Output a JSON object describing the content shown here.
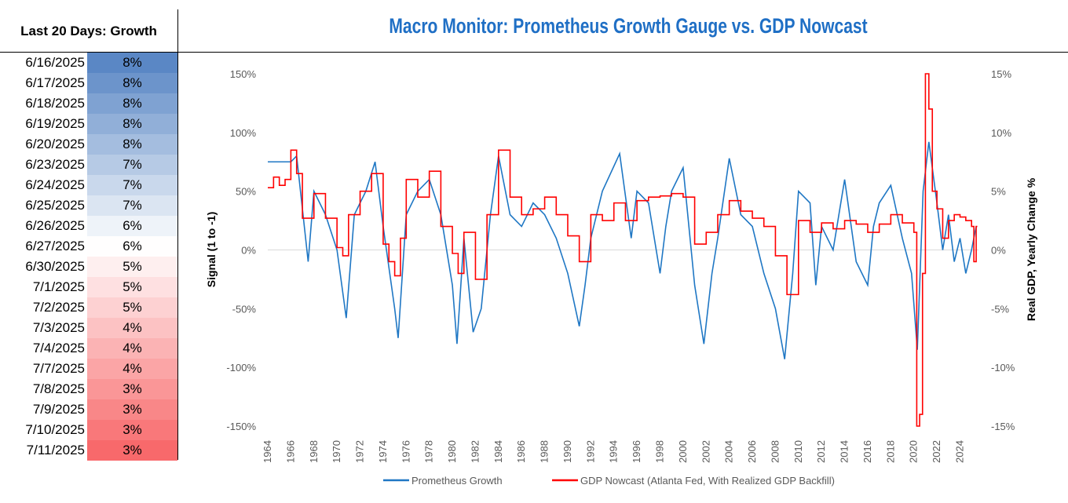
{
  "table": {
    "header": "Last 20 Days: Growth",
    "rows": [
      [
        "6/16/2025",
        "8%"
      ],
      [
        "6/17/2025",
        "8%"
      ],
      [
        "6/18/2025",
        "8%"
      ],
      [
        "6/19/2025",
        "8%"
      ],
      [
        "6/20/2025",
        "8%"
      ],
      [
        "6/23/2025",
        "7%"
      ],
      [
        "6/24/2025",
        "7%"
      ],
      [
        "6/25/2025",
        "7%"
      ],
      [
        "6/26/2025",
        "6%"
      ],
      [
        "6/27/2025",
        "6%"
      ],
      [
        "6/30/2025",
        "5%"
      ],
      [
        "7/1/2025",
        "5%"
      ],
      [
        "7/2/2025",
        "5%"
      ],
      [
        "7/3/2025",
        "4%"
      ],
      [
        "7/4/2025",
        "4%"
      ],
      [
        "7/7/2025",
        "4%"
      ],
      [
        "7/8/2025",
        "3%"
      ],
      [
        "7/9/2025",
        "3%"
      ],
      [
        "7/10/2025",
        "3%"
      ],
      [
        "7/11/2025",
        "3%"
      ]
    ],
    "color_high": "#5a87c5",
    "color_mid": "#ffffff",
    "color_low": "#f8696b"
  },
  "chart_data": {
    "type": "line",
    "title": "Macro Monitor: Prometheus Growth Gauge vs. GDP Nowcast",
    "ylabel": "Signal (1 to -1)",
    "y2label": "Real GDP, Yearly Change %",
    "ylim": [
      -1.5,
      1.5
    ],
    "y2lim": [
      -15,
      15
    ],
    "yticks": [
      "150%",
      "100%",
      "50%",
      "0%",
      "-50%",
      "-100%",
      "-150%"
    ],
    "y2ticks": [
      "15%",
      "10%",
      "5%",
      "0%",
      "-5%",
      "-10%",
      "-15%"
    ],
    "xlim": [
      1964,
      2025.6
    ],
    "xticks": [
      "1964",
      "1966",
      "1968",
      "1970",
      "1972",
      "1974",
      "1976",
      "1978",
      "1980",
      "1982",
      "1984",
      "1986",
      "1988",
      "1990",
      "1992",
      "1994",
      "1996",
      "1998",
      "2000",
      "2002",
      "2004",
      "2006",
      "2008",
      "2010",
      "2012",
      "2014",
      "2016",
      "2018",
      "2020",
      "2022",
      "2024"
    ],
    "legend_position": "bottom",
    "series": [
      {
        "name": "Prometheus Growth",
        "color": "#1f77c4",
        "axis": "left",
        "x": [
          1964,
          1966,
          1966.5,
          1967.5,
          1968,
          1969,
          1970,
          1970.8,
          1971.5,
          1972.5,
          1973.3,
          1974,
          1975,
          1975.3,
          1976,
          1977,
          1978,
          1979,
          1980,
          1980.4,
          1981,
          1981.8,
          1982.5,
          1983.3,
          1984,
          1985,
          1986,
          1987,
          1988,
          1989,
          1990,
          1991,
          1991.5,
          1992,
          1993,
          1994.5,
          1995.5,
          1996,
          1997,
          1998,
          1998.5,
          1999,
          2000,
          2001,
          2001.8,
          2002.5,
          2003,
          2004,
          2005,
          2006,
          2007,
          2008,
          2008.8,
          2009.5,
          2010,
          2011,
          2011.5,
          2012,
          2013,
          2014,
          2015,
          2016,
          2016.5,
          2017,
          2018,
          2019,
          2019.8,
          2020.3,
          2020.8,
          2021.3,
          2022,
          2022.5,
          2023,
          2023.5,
          2024,
          2024.5,
          2025,
          2025.4
        ],
        "y": [
          0.75,
          0.75,
          0.8,
          -0.1,
          0.5,
          0.3,
          0,
          -0.58,
          0.3,
          0.5,
          0.75,
          0.2,
          -0.5,
          -0.75,
          0.3,
          0.5,
          0.6,
          0.3,
          -0.3,
          -0.8,
          0.1,
          -0.7,
          -0.5,
          0.3,
          0.8,
          0.3,
          0.2,
          0.4,
          0.3,
          0.1,
          -0.2,
          -0.65,
          -0.3,
          0.1,
          0.5,
          0.82,
          0.1,
          0.5,
          0.4,
          -0.2,
          0.2,
          0.5,
          0.7,
          -0.3,
          -0.8,
          -0.2,
          0.1,
          0.78,
          0.3,
          0.2,
          -0.2,
          -0.5,
          -0.93,
          -0.2,
          0.5,
          0.4,
          -0.3,
          0.2,
          0,
          0.6,
          -0.1,
          -0.3,
          0.2,
          0.4,
          0.55,
          0.1,
          -0.2,
          -0.85,
          0.5,
          0.92,
          0.4,
          0,
          0.3,
          -0.1,
          0.1,
          -0.2,
          0,
          0.2
        ]
      },
      {
        "name": "GDP Nowcast (Atlanta Fed, With Realized GDP Backfill)",
        "color": "#ff0000",
        "axis": "right",
        "step": true,
        "x": [
          1964,
          1964.5,
          1965,
          1965.5,
          1966,
          1966.5,
          1967,
          1968,
          1969,
          1970,
          1970.5,
          1971,
          1972,
          1973,
          1974,
          1974.5,
          1975,
          1975.5,
          1976,
          1977,
          1978,
          1979,
          1980,
          1980.5,
          1981,
          1982,
          1983,
          1984,
          1985,
          1986,
          1987,
          1988,
          1989,
          1990,
          1991,
          1992,
          1993,
          1994,
          1995,
          1996,
          1997,
          1998,
          1999,
          2000,
          2001,
          2002,
          2003,
          2004,
          2005,
          2006,
          2007,
          2008,
          2009,
          2010,
          2011,
          2012,
          2013,
          2014,
          2015,
          2016,
          2017,
          2018,
          2019,
          2020,
          2020.25,
          2020.5,
          2020.75,
          2021,
          2021.3,
          2021.6,
          2022,
          2022.5,
          2023,
          2023.5,
          2024,
          2024.5,
          2025,
          2025.2,
          2025.4
        ],
        "y": [
          5.3,
          6.2,
          5.5,
          6,
          8.5,
          6.5,
          2.7,
          4.8,
          2.7,
          0.2,
          -0.5,
          3,
          5,
          6.5,
          0.5,
          -1,
          -2.2,
          1,
          6,
          4.5,
          6.7,
          2,
          -0.3,
          -2,
          1.5,
          -2.5,
          3,
          8.5,
          4.5,
          3,
          3.5,
          4.5,
          3,
          1.2,
          -1,
          3,
          2.5,
          4,
          2.5,
          4.2,
          4.5,
          4.6,
          4.8,
          4.5,
          0.5,
          1.5,
          3,
          4.2,
          3.3,
          2.7,
          2,
          -0.5,
          -3.8,
          2.5,
          1.5,
          2.3,
          1.8,
          2.5,
          2.2,
          1.5,
          2.2,
          3,
          2.3,
          1.5,
          -15,
          -14,
          -2,
          15,
          12,
          5,
          3.5,
          1,
          2.5,
          3,
          2.8,
          2.5,
          2,
          -1,
          2
        ]
      }
    ]
  }
}
